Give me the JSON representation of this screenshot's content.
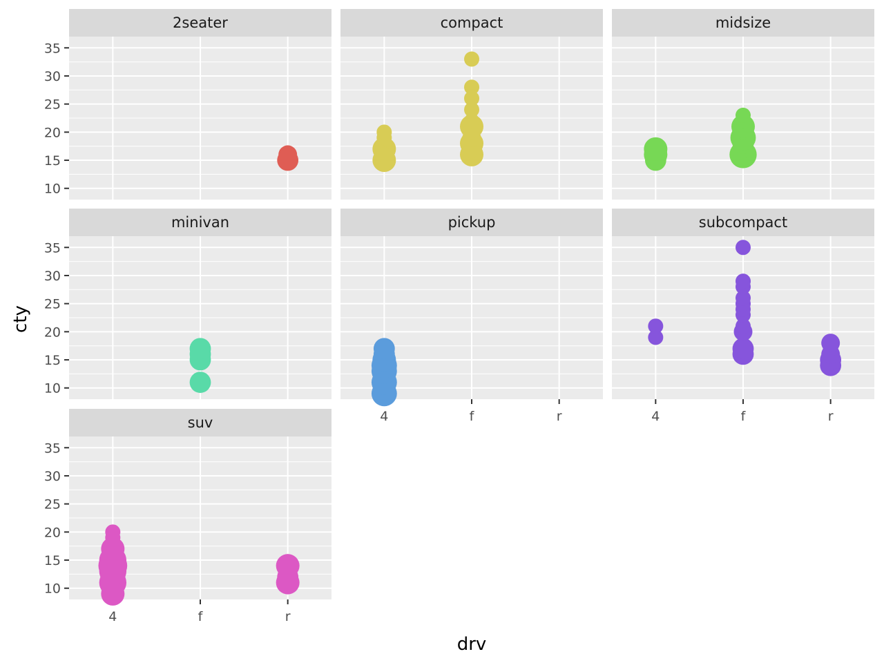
{
  "chart_data": {
    "type": "scatter",
    "facet_variable": "class",
    "xlabel": "drv",
    "ylabel": "cty",
    "x_categories": [
      "4",
      "f",
      "r"
    ],
    "y_ticks": [
      10,
      15,
      20,
      25,
      30,
      35
    ],
    "ylim": [
      8,
      37
    ],
    "size_variable": "count",
    "grid": true,
    "panels": [
      {
        "name": "2seater",
        "color": "#DF5D54",
        "points": [
          {
            "x": "r",
            "y": 15,
            "n": 3
          },
          {
            "x": "r",
            "y": 16,
            "n": 2
          }
        ]
      },
      {
        "name": "compact",
        "color": "#D8CC55",
        "points": [
          {
            "x": "4",
            "y": 15,
            "n": 4
          },
          {
            "x": "4",
            "y": 17,
            "n": 4
          },
          {
            "x": "4",
            "y": 16,
            "n": 1
          },
          {
            "x": "4",
            "y": 19,
            "n": 1
          },
          {
            "x": "4",
            "y": 20,
            "n": 1
          },
          {
            "x": "f",
            "y": 16,
            "n": 4
          },
          {
            "x": "f",
            "y": 17,
            "n": 2
          },
          {
            "x": "f",
            "y": 18,
            "n": 4
          },
          {
            "x": "f",
            "y": 19,
            "n": 2
          },
          {
            "x": "f",
            "y": 20,
            "n": 1
          },
          {
            "x": "f",
            "y": 21,
            "n": 4
          },
          {
            "x": "f",
            "y": 22,
            "n": 1
          },
          {
            "x": "f",
            "y": 24,
            "n": 1
          },
          {
            "x": "f",
            "y": 26,
            "n": 1
          },
          {
            "x": "f",
            "y": 28,
            "n": 1
          },
          {
            "x": "f",
            "y": 33,
            "n": 1
          }
        ]
      },
      {
        "name": "midsize",
        "color": "#77D855",
        "points": [
          {
            "x": "4",
            "y": 15,
            "n": 3
          },
          {
            "x": "4",
            "y": 16,
            "n": 4
          },
          {
            "x": "4",
            "y": 17,
            "n": 4
          },
          {
            "x": "f",
            "y": 16,
            "n": 6
          },
          {
            "x": "f",
            "y": 17,
            "n": 2
          },
          {
            "x": "f",
            "y": 18,
            "n": 3
          },
          {
            "x": "f",
            "y": 19,
            "n": 5
          },
          {
            "x": "f",
            "y": 20,
            "n": 1
          },
          {
            "x": "f",
            "y": 21,
            "n": 4
          },
          {
            "x": "f",
            "y": 22,
            "n": 1
          },
          {
            "x": "f",
            "y": 23,
            "n": 1
          }
        ]
      },
      {
        "name": "minivan",
        "color": "#59DAA8",
        "points": [
          {
            "x": "f",
            "y": 11,
            "n": 3
          },
          {
            "x": "f",
            "y": 15,
            "n": 3
          },
          {
            "x": "f",
            "y": 16,
            "n": 3
          },
          {
            "x": "f",
            "y": 17,
            "n": 3
          }
        ]
      },
      {
        "name": "pickup",
        "color": "#5B9CDC",
        "points": [
          {
            "x": "4",
            "y": 9,
            "n": 5
          },
          {
            "x": "4",
            "y": 11,
            "n": 5
          },
          {
            "x": "4",
            "y": 12,
            "n": 3
          },
          {
            "x": "4",
            "y": 13,
            "n": 5
          },
          {
            "x": "4",
            "y": 14,
            "n": 5
          },
          {
            "x": "4",
            "y": 15,
            "n": 4
          },
          {
            "x": "4",
            "y": 16,
            "n": 3
          },
          {
            "x": "4",
            "y": 17,
            "n": 3
          }
        ]
      },
      {
        "name": "subcompact",
        "color": "#8655DC",
        "points": [
          {
            "x": "4",
            "y": 19,
            "n": 1
          },
          {
            "x": "4",
            "y": 21,
            "n": 1
          },
          {
            "x": "f",
            "y": 16,
            "n": 3
          },
          {
            "x": "f",
            "y": 17,
            "n": 3
          },
          {
            "x": "f",
            "y": 20,
            "n": 2
          },
          {
            "x": "f",
            "y": 21,
            "n": 1
          },
          {
            "x": "f",
            "y": 23,
            "n": 1
          },
          {
            "x": "f",
            "y": 24,
            "n": 1
          },
          {
            "x": "f",
            "y": 25,
            "n": 1
          },
          {
            "x": "f",
            "y": 26,
            "n": 1
          },
          {
            "x": "f",
            "y": 28,
            "n": 1
          },
          {
            "x": "f",
            "y": 29,
            "n": 1
          },
          {
            "x": "f",
            "y": 35,
            "n": 1
          },
          {
            "x": "r",
            "y": 14,
            "n": 3
          },
          {
            "x": "r",
            "y": 15,
            "n": 3
          },
          {
            "x": "r",
            "y": 16,
            "n": 2
          },
          {
            "x": "r",
            "y": 17,
            "n": 1
          },
          {
            "x": "r",
            "y": 18,
            "n": 2
          }
        ]
      },
      {
        "name": "suv",
        "color": "#DC58C4",
        "points": [
          {
            "x": "4",
            "y": 9,
            "n": 4
          },
          {
            "x": "4",
            "y": 11,
            "n": 6
          },
          {
            "x": "4",
            "y": 12,
            "n": 4
          },
          {
            "x": "4",
            "y": 13,
            "n": 6
          },
          {
            "x": "4",
            "y": 14,
            "n": 7
          },
          {
            "x": "4",
            "y": 15,
            "n": 6
          },
          {
            "x": "4",
            "y": 16,
            "n": 3
          },
          {
            "x": "4",
            "y": 17,
            "n": 4
          },
          {
            "x": "4",
            "y": 18,
            "n": 1
          },
          {
            "x": "4",
            "y": 19,
            "n": 1
          },
          {
            "x": "4",
            "y": 20,
            "n": 1
          },
          {
            "x": "r",
            "y": 11,
            "n": 4
          },
          {
            "x": "r",
            "y": 12,
            "n": 3
          },
          {
            "x": "r",
            "y": 14,
            "n": 4
          }
        ]
      }
    ]
  }
}
